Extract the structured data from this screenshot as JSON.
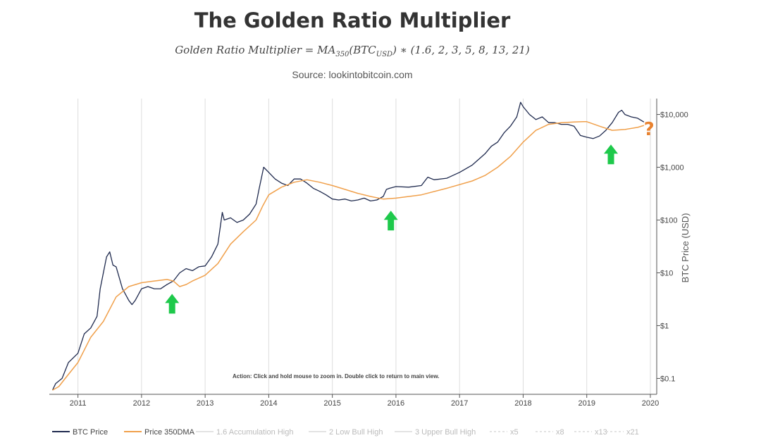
{
  "header": {
    "title": "The Golden Ratio Multiplier",
    "formula": {
      "lhs": "Golden Ratio Multiplier",
      "eq": " = ",
      "ma": "MA",
      "ma_sub": "350",
      "arg": "(BTC",
      "arg_sub": "USD",
      "tail": ") ∗ (1.6, 2, 3, 5, 8, 13, 21)"
    },
    "source": "Source: lookintobitcoin.com"
  },
  "action_text": "Action: Click and hold mouse to zoom in.  Double click to return to main view.",
  "question_mark": "?",
  "colors": {
    "btc": "#1f2a4e",
    "ma": "#f0a04b",
    "arrow": "#1ec94b",
    "question": "#e8822f",
    "grid": "#dddddd",
    "axis": "#555555"
  },
  "chart_data": {
    "type": "line",
    "title": "The Golden Ratio Multiplier",
    "ylabel": "BTC Price (USD)",
    "yscale": "log",
    "ylim": [
      0.05,
      20000
    ],
    "xlim": [
      2010.55,
      2020.1
    ],
    "x_ticks": [
      "2011",
      "2012",
      "2013",
      "2014",
      "2015",
      "2016",
      "2017",
      "2018",
      "2019",
      "2020"
    ],
    "y_ticks": [
      {
        "value": 0.1,
        "label": "$0.1"
      },
      {
        "value": 1,
        "label": "$1"
      },
      {
        "value": 10,
        "label": "$10"
      },
      {
        "value": 100,
        "label": "$100"
      },
      {
        "value": 1000,
        "label": "$1,000"
      },
      {
        "value": 10000,
        "label": "$10,000"
      }
    ],
    "series": [
      {
        "name": "BTC Price",
        "x": [
          2010.6,
          2010.65,
          2010.75,
          2010.85,
          2011.0,
          2011.1,
          2011.2,
          2011.3,
          2011.35,
          2011.4,
          2011.45,
          2011.5,
          2011.55,
          2011.6,
          2011.7,
          2011.8,
          2011.85,
          2011.9,
          2012.0,
          2012.1,
          2012.2,
          2012.3,
          2012.4,
          2012.5,
          2012.6,
          2012.7,
          2012.8,
          2012.9,
          2013.0,
          2013.1,
          2013.2,
          2013.27,
          2013.3,
          2013.4,
          2013.5,
          2013.6,
          2013.7,
          2013.8,
          2013.85,
          2013.92,
          2014.0,
          2014.1,
          2014.2,
          2014.3,
          2014.4,
          2014.5,
          2014.6,
          2014.7,
          2014.8,
          2014.9,
          2015.0,
          2015.1,
          2015.2,
          2015.3,
          2015.4,
          2015.5,
          2015.6,
          2015.7,
          2015.8,
          2015.85,
          2015.9,
          2016.0,
          2016.2,
          2016.4,
          2016.5,
          2016.6,
          2016.8,
          2017.0,
          2017.2,
          2017.4,
          2017.5,
          2017.6,
          2017.7,
          2017.8,
          2017.9,
          2017.96,
          2018.0,
          2018.1,
          2018.2,
          2018.3,
          2018.4,
          2018.5,
          2018.6,
          2018.7,
          2018.8,
          2018.9,
          2019.0,
          2019.1,
          2019.2,
          2019.3,
          2019.4,
          2019.5,
          2019.55,
          2019.6,
          2019.7,
          2019.8,
          2019.9
        ],
        "values": [
          0.06,
          0.08,
          0.1,
          0.2,
          0.3,
          0.7,
          0.9,
          1.5,
          5,
          10,
          20,
          25,
          14,
          13,
          5,
          3,
          2.5,
          3,
          5,
          5.5,
          5,
          5,
          6,
          7,
          10,
          12,
          11,
          13,
          13.5,
          20,
          35,
          140,
          100,
          110,
          90,
          100,
          130,
          200,
          400,
          1000,
          800,
          600,
          500,
          450,
          600,
          600,
          500,
          400,
          350,
          300,
          250,
          240,
          250,
          230,
          240,
          260,
          230,
          240,
          280,
          380,
          400,
          430,
          420,
          450,
          650,
          580,
          620,
          800,
          1100,
          1800,
          2500,
          3000,
          4500,
          6000,
          9000,
          17000,
          14000,
          10000,
          8000,
          9000,
          7000,
          7000,
          6500,
          6500,
          6000,
          4000,
          3700,
          3500,
          3900,
          5000,
          7000,
          11000,
          12000,
          10000,
          9000,
          8500,
          7200
        ]
      },
      {
        "name": "Price 350DMA",
        "x": [
          2010.6,
          2010.7,
          2010.8,
          2011.0,
          2011.2,
          2011.4,
          2011.6,
          2011.8,
          2012.0,
          2012.2,
          2012.4,
          2012.5,
          2012.6,
          2012.7,
          2012.8,
          2013.0,
          2013.2,
          2013.4,
          2013.6,
          2013.8,
          2013.9,
          2014.0,
          2014.2,
          2014.4,
          2014.6,
          2014.8,
          2015.0,
          2015.2,
          2015.4,
          2015.6,
          2015.8,
          2016.0,
          2016.4,
          2016.8,
          2017.2,
          2017.4,
          2017.6,
          2017.8,
          2018.0,
          2018.2,
          2018.4,
          2018.6,
          2018.8,
          2018.95,
          2019.0,
          2019.2,
          2019.4,
          2019.6,
          2019.8,
          2019.9
        ],
        "values": [
          0.06,
          0.07,
          0.1,
          0.2,
          0.6,
          1.2,
          3.5,
          5.5,
          6.5,
          7,
          7.5,
          7,
          5.5,
          6,
          7,
          9,
          15,
          35,
          60,
          100,
          180,
          300,
          420,
          520,
          580,
          520,
          450,
          380,
          320,
          280,
          250,
          260,
          300,
          400,
          550,
          700,
          1000,
          1600,
          3000,
          5000,
          6500,
          7000,
          7200,
          7300,
          7300,
          6000,
          5000,
          5200,
          5700,
          6200
        ]
      },
      {
        "name": "1.6 Accumulation High",
        "x": [],
        "values": []
      },
      {
        "name": "2 Low Bull High",
        "x": [],
        "values": []
      },
      {
        "name": "3 Upper Bull High",
        "x": [],
        "values": []
      },
      {
        "name": "x5",
        "x": [],
        "values": []
      },
      {
        "name": "x8",
        "x": [],
        "values": []
      },
      {
        "name": "x13",
        "x": [],
        "values": []
      },
      {
        "name": "x21",
        "x": [],
        "values": []
      }
    ],
    "annotations": [
      {
        "type": "up-arrow",
        "x": 2012.48,
        "y": 4.0
      },
      {
        "type": "up-arrow",
        "x": 2015.92,
        "y": 150
      },
      {
        "type": "up-arrow",
        "x": 2019.38,
        "y": 2700
      },
      {
        "type": "question-mark",
        "x": 2019.98,
        "y": 5500
      }
    ],
    "legend": [
      {
        "label": "BTC Price",
        "style": "solid",
        "color": "#1f2a4e"
      },
      {
        "label": "Price 350DMA",
        "style": "solid",
        "color": "#f0a04b"
      },
      {
        "label": "1.6 Accumulation High",
        "style": "solid",
        "color": "#e3e3e3"
      },
      {
        "label": "2 Low Bull High",
        "style": "solid",
        "color": "#e3e3e3"
      },
      {
        "label": "3 Upper Bull High",
        "style": "solid",
        "color": "#e3e3e3"
      },
      {
        "label": "x5",
        "style": "dashed",
        "color": "#e3e3e3"
      },
      {
        "label": "x8",
        "style": "dashed",
        "color": "#e3e3e3"
      },
      {
        "label": "x13",
        "style": "dashed",
        "color": "#e3e3e3"
      },
      {
        "label": "x21",
        "style": "dashed",
        "color": "#e3e3e3"
      }
    ],
    "legend_position": "bottom",
    "grid": "vertical"
  }
}
